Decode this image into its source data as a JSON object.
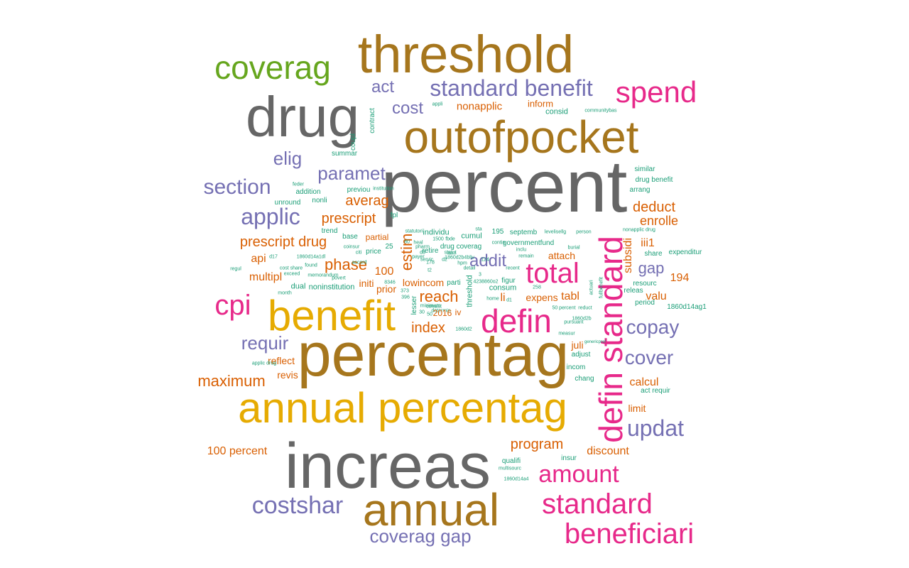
{
  "palette": {
    "gray": "#666666",
    "brown": "#a6761d",
    "gold": "#e6ab02",
    "magenta": "#e7298a",
    "purple": "#7570b3",
    "orange": "#d95f02",
    "teal": "#1b9e77",
    "green": "#66a61e"
  },
  "words": [
    "percent",
    "increas",
    "percentag",
    "drug",
    "threshold",
    "outofpocket",
    "annual",
    "benefit",
    "annual percentag",
    "defin standard",
    "coverag",
    "spend",
    "total",
    "defin",
    "standard",
    "beneficiari",
    "standard benefit",
    "cpi",
    "amount",
    "costshar",
    "updat",
    "copay",
    "cover",
    "section",
    "applic",
    "coverag gap",
    "paramet",
    "elig",
    "act",
    "cost",
    "addit",
    "phase",
    "estim",
    "reach",
    "index",
    "requir",
    "maximum",
    "prescript",
    "prescript drug",
    "averag",
    "deduct",
    "enrolle",
    "program",
    "100 percent",
    "discount",
    "gap",
    "subsidi",
    "iii1",
    "194",
    "valu",
    "tabl",
    "expens",
    "attach",
    "calcul",
    "limit",
    "api",
    "multipl",
    "100",
    "lowincom",
    "prior",
    "initi",
    "juli",
    "reflect",
    "revis",
    "nonapplic",
    "inform",
    "consid",
    "communitybas",
    "appli",
    "summar",
    "coupl",
    "contract",
    "feder",
    "addition",
    "nonli",
    "unround",
    "previou",
    "institution",
    "fpl",
    "trend",
    "base",
    "partial",
    "coinsur",
    "citi",
    "25",
    "individu",
    "cumul",
    "195",
    "septemb",
    "levelisellg",
    "person",
    "nonapplic drug",
    "similar",
    "drug benefit",
    "arrang",
    "governmentfund",
    "inclu",
    "burial",
    "share",
    "expenditur",
    "resourc",
    "releas",
    "period",
    "1860d14ag1",
    "act requir",
    "genericpref",
    "incom",
    "adjust",
    "chang",
    "insur",
    "qualifi",
    "multisourc",
    "1860d14a4",
    "dual",
    "noninstitution",
    "regul",
    "month",
    "applic drug",
    "cost share",
    "exceed",
    "memorandum",
    "povert",
    "found",
    "accord",
    "price",
    "retire",
    "drug coverag",
    "statut",
    "consum",
    "figur",
    "recent",
    "threshold",
    "home",
    "parti",
    "lesser",
    "minimum",
    "determin",
    "2016",
    "iv",
    "li",
    "d1",
    "item",
    "fbde",
    "payer",
    "pharm",
    "1500",
    "heal",
    "d17",
    "1860d14a1dl",
    "8346",
    "373",
    "396",
    "50",
    "30",
    "258",
    "50 percent",
    "reduct",
    "pursuant",
    "measur",
    "actuari",
    "1860d2b",
    "fullbenefit",
    "1860d2",
    "consist",
    "3",
    "d2",
    "detail",
    "servic",
    "sta",
    "contin",
    "d3",
    "hpm",
    "178",
    "t2",
    "4238860o2",
    "124",
    "remain",
    "1860d2b4bliv",
    "statutori",
    "80",
    "dor"
  ]
}
